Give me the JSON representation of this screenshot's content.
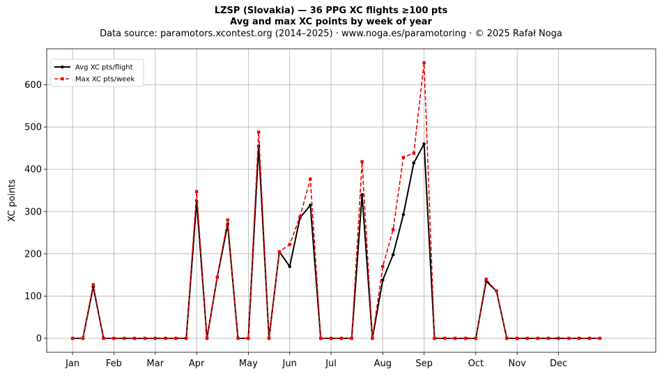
{
  "titles": {
    "line1": "LZSP (Slovakia)  —  36 PPG XC flights ≥100 pts",
    "line2": "Avg and max XC points by week of year",
    "line3": "Data source: paramotors.xcontest.org (2014–2025)  ·  www.noga.es/paramotoring  ·  © 2025 Rafał Noga"
  },
  "chart_data": {
    "type": "line",
    "title": "LZSP (Slovakia)  —  36 PPG XC flights ≥100 pts",
    "subtitle": "Avg and max XC points by week of year",
    "xlabel": "",
    "ylabel": "XC points",
    "xlim": [
      -2.5,
      56.4
    ],
    "ylim": [
      -33,
      685
    ],
    "grid": true,
    "legend": "top-left",
    "x_tick_labels": [
      "Jan",
      "Feb",
      "Mar",
      "Apr",
      "May",
      "Jun",
      "Jul",
      "Aug",
      "Sep",
      "Oct",
      "Nov",
      "Dec"
    ],
    "x_tick_weeks": [
      0,
      4,
      8,
      12,
      17,
      21,
      25,
      30,
      34,
      39,
      43,
      47
    ],
    "y_ticks": [
      0,
      100,
      200,
      300,
      400,
      500,
      600
    ],
    "weeks": [
      0,
      1,
      2,
      3,
      4,
      5,
      6,
      7,
      8,
      9,
      10,
      11,
      12,
      13,
      14,
      15,
      16,
      17,
      18,
      19,
      20,
      21,
      22,
      23,
      24,
      25,
      26,
      27,
      28,
      29,
      30,
      31,
      32,
      33,
      34,
      35,
      36,
      37,
      38,
      39,
      40,
      41,
      42,
      43,
      44,
      45,
      46,
      47,
      48,
      49,
      50,
      51
    ],
    "series": [
      {
        "name": "Avg XC pts/flight",
        "color": "#000000",
        "values": [
          0,
          0,
          122,
          0,
          0,
          0,
          0,
          0,
          0,
          0,
          0,
          0,
          325,
          0,
          145,
          270,
          0,
          0,
          455,
          0,
          205,
          170,
          285,
          315,
          0,
          0,
          0,
          0,
          340,
          0,
          138,
          198,
          293,
          415,
          460,
          0,
          0,
          0,
          0,
          0,
          135,
          112,
          0,
          0,
          0,
          0,
          0,
          0,
          0,
          0,
          0,
          0
        ]
      },
      {
        "name": "Max XC pts/week",
        "color": "#ee0000",
        "values": [
          0,
          0,
          127,
          0,
          0,
          0,
          0,
          0,
          0,
          0,
          0,
          0,
          347,
          0,
          145,
          280,
          0,
          0,
          488,
          0,
          205,
          222,
          288,
          377,
          0,
          0,
          0,
          0,
          418,
          0,
          170,
          257,
          428,
          438,
          652,
          0,
          0,
          0,
          0,
          0,
          140,
          112,
          0,
          0,
          0,
          0,
          0,
          0,
          0,
          0,
          0,
          0
        ]
      }
    ]
  }
}
